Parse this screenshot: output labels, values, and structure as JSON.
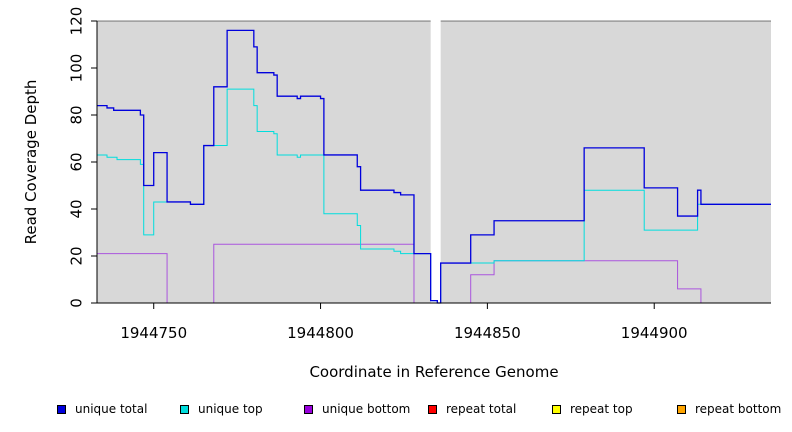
{
  "chart_data": {
    "type": "line",
    "title": "",
    "xlabel": "Coordinate in Reference Genome",
    "ylabel": "Read Coverage Depth",
    "xlim": [
      1944733,
      1944935
    ],
    "ylim": [
      0,
      120
    ],
    "x_ticks": [
      1944750,
      1944800,
      1944850,
      1944900
    ],
    "x_tick_labels": [
      "1944750",
      "1944800",
      "1944850",
      "1944900"
    ],
    "y_ticks": [
      0,
      20,
      40,
      60,
      80,
      100,
      120
    ],
    "y_tick_labels": [
      "0",
      "20",
      "40",
      "60",
      "80",
      "100",
      "120"
    ],
    "background_color": "#d8d8d8",
    "gap": [
      1944833,
      1944836
    ],
    "step_series": true,
    "series": [
      {
        "name": "unique total",
        "color": "#0000dd",
        "points": [
          [
            1944733,
            84
          ],
          [
            1944736,
            84
          ],
          [
            1944736,
            83
          ],
          [
            1944738,
            83
          ],
          [
            1944738,
            82
          ],
          [
            1944746,
            82
          ],
          [
            1944746,
            80
          ],
          [
            1944747,
            80
          ],
          [
            1944747,
            50
          ],
          [
            1944750,
            50
          ],
          [
            1944750,
            64
          ],
          [
            1944754,
            64
          ],
          [
            1944754,
            43
          ],
          [
            1944761,
            43
          ],
          [
            1944761,
            42
          ],
          [
            1944765,
            42
          ],
          [
            1944765,
            67
          ],
          [
            1944768,
            67
          ],
          [
            1944768,
            92
          ],
          [
            1944772,
            92
          ],
          [
            1944772,
            116
          ],
          [
            1944780,
            116
          ],
          [
            1944780,
            109
          ],
          [
            1944781,
            109
          ],
          [
            1944781,
            98
          ],
          [
            1944786,
            98
          ],
          [
            1944786,
            97
          ],
          [
            1944787,
            97
          ],
          [
            1944787,
            88
          ],
          [
            1944793,
            88
          ],
          [
            1944793,
            87
          ],
          [
            1944794,
            87
          ],
          [
            1944794,
            88
          ],
          [
            1944800,
            88
          ],
          [
            1944800,
            87
          ],
          [
            1944801,
            87
          ],
          [
            1944801,
            63
          ],
          [
            1944811,
            63
          ],
          [
            1944811,
            58
          ],
          [
            1944812,
            58
          ],
          [
            1944812,
            48
          ],
          [
            1944822,
            48
          ],
          [
            1944822,
            47
          ],
          [
            1944824,
            47
          ],
          [
            1944824,
            46
          ],
          [
            1944828,
            46
          ],
          [
            1944828,
            21
          ],
          [
            1944833,
            21
          ],
          [
            1944833,
            1
          ],
          [
            1944835,
            1
          ],
          [
            1944835,
            0
          ],
          [
            1944836,
            0
          ],
          [
            1944836,
            17
          ],
          [
            1944845,
            17
          ],
          [
            1944845,
            29
          ],
          [
            1944852,
            29
          ],
          [
            1944852,
            35
          ],
          [
            1944879,
            35
          ],
          [
            1944879,
            66
          ],
          [
            1944897,
            66
          ],
          [
            1944897,
            49
          ],
          [
            1944907,
            49
          ],
          [
            1944907,
            37
          ],
          [
            1944913,
            37
          ],
          [
            1944913,
            48
          ],
          [
            1944914,
            48
          ],
          [
            1944914,
            42
          ],
          [
            1944935,
            42
          ]
        ]
      },
      {
        "name": "unique top",
        "color": "#00dddd",
        "points": [
          [
            1944733,
            63
          ],
          [
            1944736,
            63
          ],
          [
            1944736,
            62
          ],
          [
            1944739,
            62
          ],
          [
            1944739,
            61
          ],
          [
            1944746,
            61
          ],
          [
            1944746,
            59
          ],
          [
            1944747,
            59
          ],
          [
            1944747,
            29
          ],
          [
            1944750,
            29
          ],
          [
            1944750,
            43
          ],
          [
            1944754,
            43
          ],
          [
            1944754,
            43
          ],
          [
            1944761,
            43
          ],
          [
            1944761,
            42
          ],
          [
            1944765,
            42
          ],
          [
            1944765,
            67
          ],
          [
            1944772,
            67
          ],
          [
            1944772,
            91
          ],
          [
            1944780,
            91
          ],
          [
            1944780,
            84
          ],
          [
            1944781,
            84
          ],
          [
            1944781,
            73
          ],
          [
            1944786,
            73
          ],
          [
            1944786,
            72
          ],
          [
            1944787,
            72
          ],
          [
            1944787,
            63
          ],
          [
            1944793,
            63
          ],
          [
            1944793,
            62
          ],
          [
            1944794,
            62
          ],
          [
            1944794,
            63
          ],
          [
            1944801,
            63
          ],
          [
            1944801,
            38
          ],
          [
            1944811,
            38
          ],
          [
            1944811,
            33
          ],
          [
            1944812,
            33
          ],
          [
            1944812,
            23
          ],
          [
            1944822,
            23
          ],
          [
            1944822,
            22
          ],
          [
            1944824,
            22
          ],
          [
            1944824,
            21
          ],
          [
            1944828,
            21
          ],
          [
            1944828,
            21
          ],
          [
            1944833,
            21
          ],
          [
            1944833,
            1
          ],
          [
            1944835,
            1
          ],
          [
            1944835,
            0
          ],
          [
            1944836,
            0
          ],
          [
            1944836,
            17
          ],
          [
            1944845,
            17
          ],
          [
            1944845,
            17
          ],
          [
            1944852,
            17
          ],
          [
            1944852,
            18
          ],
          [
            1944879,
            18
          ],
          [
            1944879,
            48
          ],
          [
            1944897,
            48
          ],
          [
            1944897,
            31
          ],
          [
            1944913,
            31
          ],
          [
            1944913,
            42
          ],
          [
            1944935,
            42
          ]
        ]
      },
      {
        "name": "unique bottom",
        "color": "#aa55dd",
        "points": [
          [
            1944733,
            21
          ],
          [
            1944754,
            21
          ],
          [
            1944754,
            0
          ],
          [
            1944768,
            0
          ],
          [
            1944768,
            25
          ],
          [
            1944828,
            25
          ],
          [
            1944828,
            0
          ],
          [
            1944833,
            0
          ],
          [
            1944836,
            0
          ],
          [
            1944845,
            0
          ],
          [
            1944845,
            12
          ],
          [
            1944852,
            12
          ],
          [
            1944852,
            18
          ],
          [
            1944907,
            18
          ],
          [
            1944907,
            6
          ],
          [
            1944914,
            6
          ],
          [
            1944914,
            0
          ],
          [
            1944935,
            0
          ]
        ]
      },
      {
        "name": "repeat total",
        "color": "#ff0000",
        "points": [
          [
            1944733,
            0
          ],
          [
            1944935,
            0
          ]
        ]
      },
      {
        "name": "repeat top",
        "color": "#ffff00",
        "points": [
          [
            1944733,
            0
          ],
          [
            1944935,
            0
          ]
        ]
      },
      {
        "name": "repeat bottom",
        "color": "#ffa500",
        "points": [
          [
            1944733,
            0
          ],
          [
            1944935,
            0
          ]
        ]
      }
    ]
  },
  "legend": [
    {
      "label": "unique total",
      "color": "#0000dd"
    },
    {
      "label": "unique top",
      "color": "#00dddd"
    },
    {
      "label": "unique bottom",
      "color": "#9900dd"
    },
    {
      "label": "repeat total",
      "color": "#ff0000"
    },
    {
      "label": "repeat top",
      "color": "#ffff00"
    },
    {
      "label": "repeat bottom",
      "color": "#ffa500"
    }
  ]
}
